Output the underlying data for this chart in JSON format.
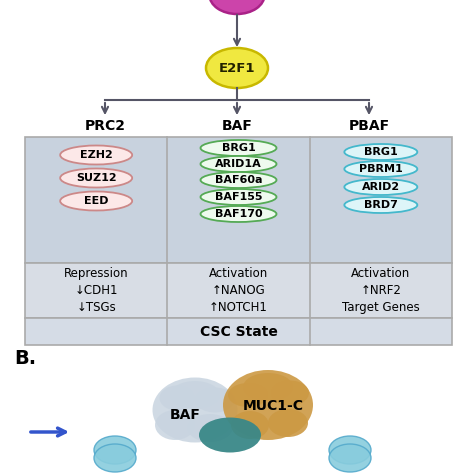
{
  "bg_color": "#ffffff",
  "table_bg_top": "#c8d2de",
  "table_bg_bot": "#d8dde5",
  "table_border": "#aaaaaa",
  "prc2_ellipse_fill": "#fce8e8",
  "prc2_ellipse_edge": "#cc8888",
  "baf_ellipse_fill": "#eefaee",
  "baf_ellipse_edge": "#55aa55",
  "pbaf_ellipse_fill": "#ddf5f8",
  "pbaf_ellipse_edge": "#44b8cc",
  "e2f1_fill": "#f0e840",
  "e2f1_edge": "#c8b800",
  "muc1c_top_fill": "#cc44aa",
  "muc1c_top_edge": "#aa2288",
  "arrow_color": "#555566",
  "prc2_members": [
    "EZH2",
    "SUZ12",
    "EED"
  ],
  "baf_members": [
    "BRG1",
    "ARID1A",
    "BAF60a",
    "BAF155",
    "BAF170"
  ],
  "pbaf_members": [
    "BRG1",
    "PBRM1",
    "ARID2",
    "BRD7"
  ],
  "prc2_label": "PRC2",
  "baf_label": "BAF",
  "pbaf_label": "PBAF",
  "e2f1_label": "E2F1",
  "prc2_text": "Repression\n↓CDH1\n↓TSGs",
  "baf_text": "Activation\n↑NANOG\n↑NOTCH1",
  "pbaf_text": "Activation\n↑NRF2\nTarget Genes",
  "csc_text": "CSC State",
  "b_label": "B.",
  "bottom_baf_fill": "#c8d4e0",
  "bottom_baf_edge": "#8899aa",
  "bottom_muc1c_fill": "#cc9944",
  "bottom_muc1c_edge": "#996622",
  "bottom_teal_fill": "#3a8888",
  "bottom_teal_edge": "#226666",
  "bottom_cyan_fill": "#88ccdd",
  "bottom_cyan_edge": "#55aacc",
  "bottom_arrow_color": "#3355cc"
}
